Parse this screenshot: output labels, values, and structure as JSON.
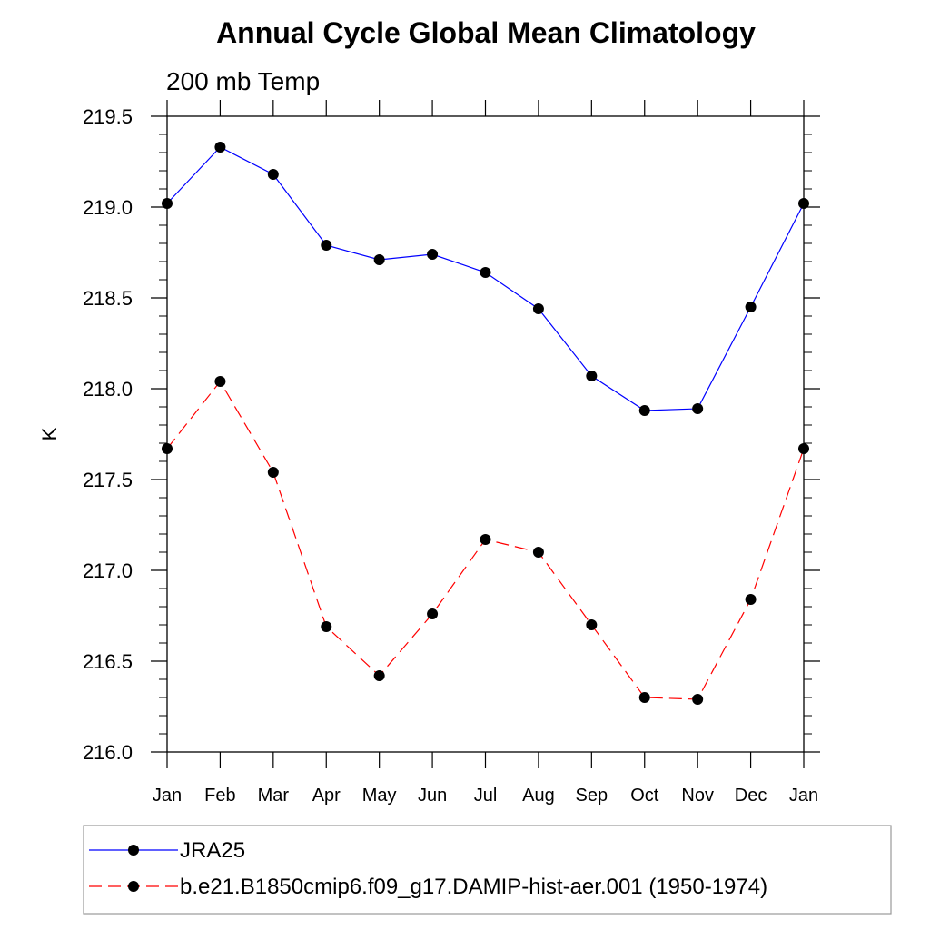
{
  "chart_data": {
    "type": "line",
    "title": "Annual Cycle Global Mean Climatology",
    "subtitle": "200 mb Temp",
    "xlabel": "",
    "ylabel": "K",
    "categories": [
      "Jan",
      "Feb",
      "Mar",
      "Apr",
      "May",
      "Jun",
      "Jul",
      "Aug",
      "Sep",
      "Oct",
      "Nov",
      "Dec",
      "Jan"
    ],
    "ylim": [
      216.0,
      219.5
    ],
    "yticks": [
      "216.0",
      "216.5",
      "217.0",
      "217.5",
      "218.0",
      "218.5",
      "219.0",
      "219.5"
    ],
    "grid": false,
    "legend_position": "bottom",
    "series": [
      {
        "name": "JRA25",
        "color": "#0000ff",
        "dash": "solid",
        "values": [
          219.02,
          219.33,
          219.18,
          218.79,
          218.71,
          218.74,
          218.64,
          218.44,
          218.07,
          217.88,
          217.89,
          218.45,
          219.02
        ]
      },
      {
        "name": "b.e21.B1850cmip6.f09_g17.DAMIP-hist-aer.001 (1950-1974)",
        "color": "#ff0000",
        "dash": "dashed",
        "values": [
          217.67,
          218.04,
          217.54,
          216.69,
          216.42,
          216.76,
          217.17,
          217.1,
          216.7,
          216.3,
          216.29,
          216.84,
          217.67
        ]
      }
    ]
  }
}
